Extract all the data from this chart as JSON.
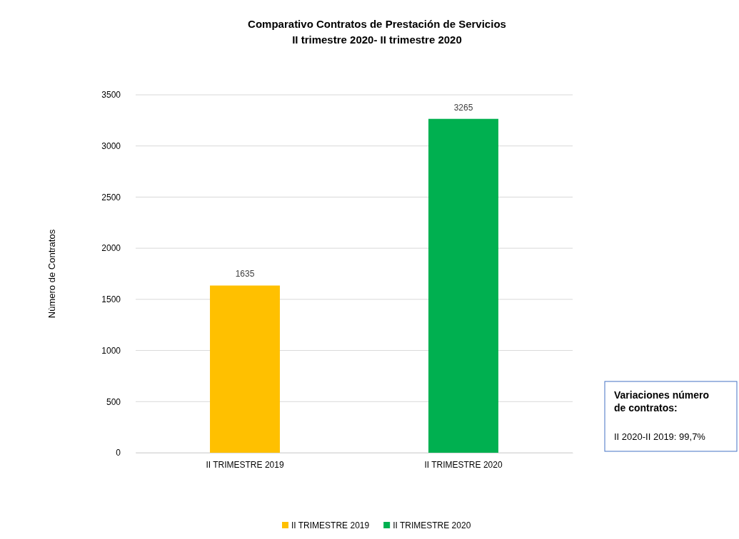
{
  "chart_data": {
    "type": "bar",
    "title": "Comparativo Contratos de Prestación de Servicios",
    "subtitle": "II trimestre 2020- II trimestre 2020",
    "ylabel": "Nùmero de Contratos",
    "categories": [
      "II TRIMESTRE 2019",
      "II TRIMESTRE 2020"
    ],
    "series": [
      {
        "name": "II TRIMESTRE 2019",
        "color": "#ffc000",
        "values": [
          1635,
          null
        ]
      },
      {
        "name": "II TRIMESTRE 2020",
        "color": "#00b050",
        "values": [
          null,
          3265
        ]
      }
    ],
    "ylim": [
      0,
      3500
    ],
    "yticks": [
      0,
      500,
      1000,
      1500,
      2000,
      2500,
      3000,
      3500
    ],
    "grid": "y",
    "legend": "bottom",
    "data_labels": true,
    "annotations": [
      "Variaciones número de contratos:",
      "II 2020-II 2019: 99,7%"
    ]
  }
}
